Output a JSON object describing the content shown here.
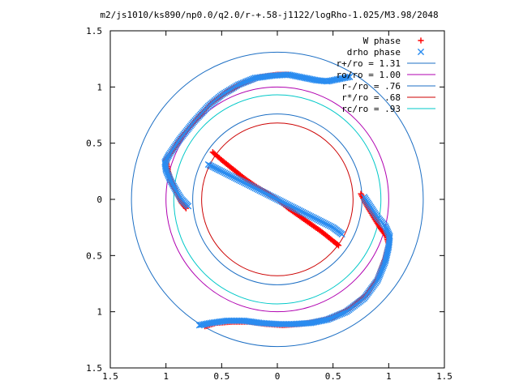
{
  "chart_data": {
    "type": "scatter",
    "title": "m2/js1010/ks890/np0.0/q2.0/r-+.58-j1122/logRho-1.025/M3.98/2048",
    "xlabel": "",
    "ylabel": "",
    "xlim": [
      -1.5,
      1.5
    ],
    "ylim": [
      -1.5,
      1.5
    ],
    "x_ticks": [
      -1.5,
      -1,
      -0.5,
      0,
      0.5,
      1,
      1.5
    ],
    "y_ticks": [
      1.5,
      1,
      0.5,
      0,
      -0.5,
      -1,
      -1.5
    ],
    "x_tick_labels": [
      "1.5",
      "1",
      "0.5",
      "0",
      "0.5",
      "1",
      "1.5"
    ],
    "y_tick_labels": [
      "1.5",
      "1",
      "0.5",
      "0",
      "0.5",
      "1",
      "1.5"
    ],
    "grid": false,
    "legend_position": "top-right",
    "series": [
      {
        "name": "W phase",
        "kind": "points",
        "marker": "plus",
        "color": "#ff0000",
        "points": [
          [
            0.1,
            1.11
          ],
          [
            0.0,
            1.11
          ],
          [
            -0.15,
            1.09
          ],
          [
            -0.3,
            1.04
          ],
          [
            -0.45,
            0.96
          ],
          [
            -0.6,
            0.85
          ],
          [
            -0.72,
            0.72
          ],
          [
            -0.85,
            0.57
          ],
          [
            -0.95,
            0.42
          ],
          [
            -1.0,
            0.35
          ],
          [
            -0.98,
            0.25
          ],
          [
            -0.95,
            0.15
          ],
          [
            -0.9,
            0.05
          ],
          [
            -0.86,
            -0.03
          ],
          [
            -0.82,
            -0.08
          ],
          [
            -0.58,
            0.42
          ],
          [
            -0.5,
            0.35
          ],
          [
            -0.4,
            0.27
          ],
          [
            -0.3,
            0.19
          ],
          [
            -0.2,
            0.12
          ],
          [
            -0.1,
            0.06
          ],
          [
            0.0,
            0.0
          ],
          [
            0.1,
            -0.08
          ],
          [
            0.2,
            -0.15
          ],
          [
            0.3,
            -0.22
          ],
          [
            0.4,
            -0.29
          ],
          [
            0.5,
            -0.37
          ],
          [
            0.55,
            -0.41
          ],
          [
            0.75,
            0.05
          ],
          [
            0.8,
            -0.05
          ],
          [
            0.86,
            -0.15
          ],
          [
            0.92,
            -0.25
          ],
          [
            0.98,
            -0.33
          ],
          [
            1.0,
            -0.4
          ],
          [
            0.97,
            -0.52
          ],
          [
            0.9,
            -0.7
          ],
          [
            0.8,
            -0.85
          ],
          [
            0.65,
            -0.97
          ],
          [
            0.5,
            -1.05
          ],
          [
            0.35,
            -1.09
          ],
          [
            0.2,
            -1.11
          ],
          [
            0.05,
            -1.12
          ],
          [
            -0.1,
            -1.11
          ],
          [
            -0.25,
            -1.09
          ],
          [
            -0.4,
            -1.09
          ],
          [
            -0.55,
            -1.1
          ],
          [
            -0.65,
            -1.13
          ]
        ]
      },
      {
        "name": "drho phase",
        "kind": "points",
        "marker": "cross",
        "color": "#2a8cf0",
        "points": [
          [
            0.65,
            1.09
          ],
          [
            0.55,
            1.07
          ],
          [
            0.45,
            1.05
          ],
          [
            0.35,
            1.06
          ],
          [
            0.25,
            1.08
          ],
          [
            0.1,
            1.11
          ],
          [
            -0.05,
            1.1
          ],
          [
            -0.2,
            1.08
          ],
          [
            -0.35,
            1.02
          ],
          [
            -0.5,
            0.93
          ],
          [
            -0.62,
            0.83
          ],
          [
            -0.75,
            0.69
          ],
          [
            -0.88,
            0.53
          ],
          [
            -0.97,
            0.4
          ],
          [
            -1.01,
            0.33
          ],
          [
            -1.0,
            0.26
          ],
          [
            -0.96,
            0.17
          ],
          [
            -0.91,
            0.08
          ],
          [
            -0.86,
            0.0
          ],
          [
            -0.8,
            -0.06
          ],
          [
            -0.62,
            0.31
          ],
          [
            -0.5,
            0.25
          ],
          [
            -0.4,
            0.2
          ],
          [
            -0.3,
            0.15
          ],
          [
            -0.2,
            0.1
          ],
          [
            -0.1,
            0.05
          ],
          [
            0.0,
            0.0
          ],
          [
            0.1,
            -0.05
          ],
          [
            0.2,
            -0.1
          ],
          [
            0.3,
            -0.15
          ],
          [
            0.4,
            -0.2
          ],
          [
            0.5,
            -0.25
          ],
          [
            0.58,
            -0.31
          ],
          [
            0.78,
            0.02
          ],
          [
            0.84,
            -0.07
          ],
          [
            0.9,
            -0.16
          ],
          [
            0.97,
            -0.24
          ],
          [
            1.01,
            -0.33
          ],
          [
            1.0,
            -0.42
          ],
          [
            0.97,
            -0.55
          ],
          [
            0.9,
            -0.72
          ],
          [
            0.78,
            -0.88
          ],
          [
            0.62,
            -1.0
          ],
          [
            0.45,
            -1.07
          ],
          [
            0.3,
            -1.1
          ],
          [
            0.15,
            -1.11
          ],
          [
            0.0,
            -1.11
          ],
          [
            -0.15,
            -1.1
          ],
          [
            -0.3,
            -1.08
          ],
          [
            -0.45,
            -1.08
          ],
          [
            -0.6,
            -1.1
          ],
          [
            -0.7,
            -1.12
          ]
        ]
      },
      {
        "name": "r+/ro = 1.31",
        "kind": "circle",
        "radius": 1.31,
        "color": "#1d6fc4"
      },
      {
        "name": "ro/ro = 1.00",
        "kind": "circle",
        "radius": 1.0,
        "color": "#b000b0"
      },
      {
        "name": "r-/ro = .76",
        "kind": "circle",
        "radius": 0.76,
        "color": "#1d6fc4"
      },
      {
        "name": "r*/ro = .68",
        "kind": "circle",
        "radius": 0.68,
        "color": "#cc0000"
      },
      {
        "name": "rc/ro = .93",
        "kind": "circle",
        "radius": 0.93,
        "color": "#00c8c8"
      }
    ]
  }
}
